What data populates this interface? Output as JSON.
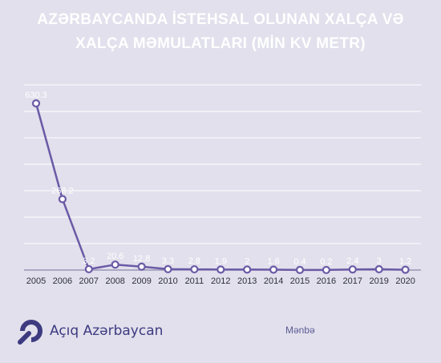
{
  "title": {
    "line1": "AZƏRBAYCANDA İSTEHSAL OLUNAN XALÇA VƏ",
    "line2": "XALÇA MƏMULATLARI (MİN KV METR)"
  },
  "footer": {
    "brand": "Açıq Azərbaycan",
    "source": "Mənbə"
  },
  "colors": {
    "background": "#e1e0ec",
    "line": "#6b5aa6",
    "grid": "#ffffff",
    "label": "#ffffff",
    "axis_text": "#2f2f3f"
  },
  "chart_data": {
    "type": "line",
    "categories": [
      "2005",
      "2006",
      "2007",
      "2008",
      "2009",
      "2010",
      "2011",
      "2012",
      "2013",
      "2014",
      "2015",
      "2016",
      "2017",
      "2019",
      "2020"
    ],
    "values": [
      630.3,
      268.2,
      3.2,
      20.6,
      12.8,
      3.3,
      2.8,
      1.9,
      2,
      1.6,
      0.4,
      0.2,
      2.4,
      3,
      1.2
    ],
    "data_labels": [
      "630.3",
      "268.2",
      "3.2",
      "20.6",
      "12.8",
      "3.3",
      "2.8",
      "1.9",
      "2",
      "1.6",
      "0.4",
      "0.2",
      "2.4",
      "3",
      "1.2"
    ],
    "ylim": [
      0,
      700
    ],
    "grid": true
  }
}
